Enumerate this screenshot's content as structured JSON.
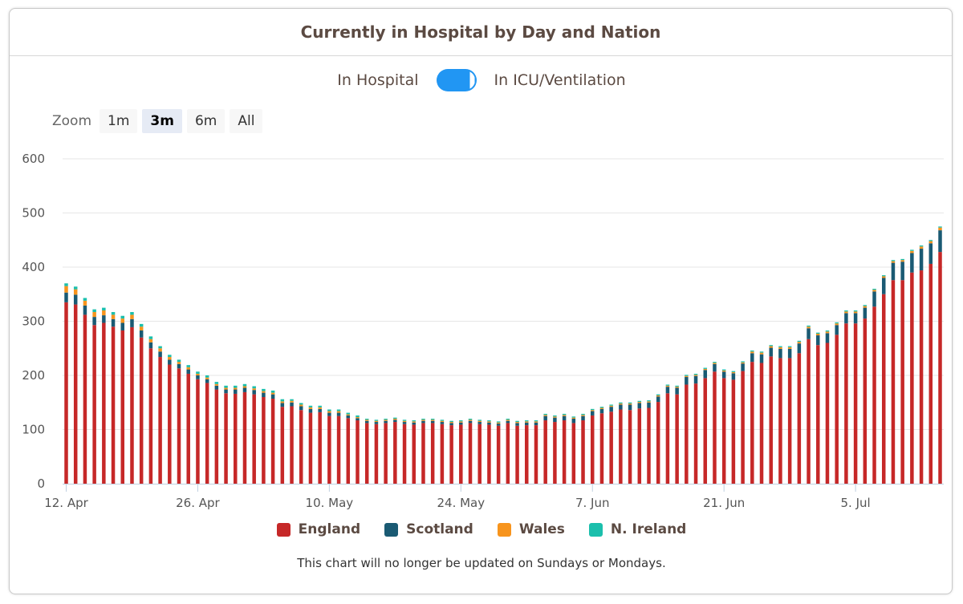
{
  "title": "Currently in Hospital by Day and Nation",
  "toggle": {
    "left_label": "In Hospital",
    "right_label": "In ICU/Ventilation",
    "state": "right"
  },
  "zoom": {
    "label": "Zoom",
    "options": [
      "1m",
      "3m",
      "6m",
      "All"
    ],
    "selected": "3m"
  },
  "note": "This chart will no longer be updated on Sundays or Mondays.",
  "chart_data": {
    "type": "bar",
    "stacked": true,
    "title": "Currently in Hospital by Day and Nation",
    "ylim": [
      0,
      600
    ],
    "yticks": [
      0,
      100,
      200,
      300,
      400,
      500,
      600
    ],
    "xtick_labels": [
      "12. Apr",
      "26. Apr",
      "10. May",
      "24. May",
      "7. Jun",
      "21. Jun",
      "5. Jul"
    ],
    "xtick_index": [
      0,
      14,
      28,
      42,
      56,
      70,
      84
    ],
    "series": [
      {
        "name": "England",
        "color": "#c62828",
        "values": [
          335,
          331,
          312,
          293,
          297,
          290,
          283,
          289,
          270,
          250,
          234,
          220,
          213,
          203,
          193,
          186,
          174,
          167,
          166,
          169,
          165,
          160,
          157,
          142,
          143,
          136,
          131,
          132,
          125,
          125,
          121,
          117,
          112,
          110,
          112,
          114,
          110,
          109,
          112,
          112,
          110,
          108,
          109,
          112,
          110,
          109,
          107,
          112,
          107,
          108,
          108,
          117,
          114,
          117,
          112,
          117,
          126,
          130,
          133,
          137,
          136,
          139,
          140,
          151,
          167,
          165,
          183,
          185,
          195,
          207,
          195,
          192,
          208,
          225,
          223,
          235,
          232,
          232,
          241,
          267,
          256,
          260,
          275,
          296,
          296,
          305,
          327,
          350,
          376,
          376,
          390,
          394,
          406,
          428
        ]
      },
      {
        "name": "Scotland",
        "color": "#1a5a73",
        "values": [
          18,
          18,
          17,
          15,
          14,
          14,
          14,
          15,
          13,
          11,
          10,
          9,
          8,
          8,
          7,
          7,
          7,
          7,
          8,
          8,
          8,
          8,
          8,
          7,
          7,
          7,
          7,
          6,
          6,
          6,
          5,
          4,
          4,
          4,
          4,
          4,
          4,
          4,
          4,
          4,
          4,
          4,
          4,
          4,
          4,
          4,
          4,
          4,
          5,
          5,
          5,
          8,
          8,
          8,
          8,
          8,
          8,
          8,
          9,
          9,
          10,
          10,
          10,
          10,
          12,
          12,
          14,
          14,
          15,
          14,
          12,
          12,
          14,
          16,
          16,
          16,
          17,
          17,
          18,
          20,
          18,
          18,
          18,
          19,
          19,
          20,
          28,
          30,
          32,
          34,
          36,
          40,
          38,
          40
        ]
      },
      {
        "name": "Wales",
        "color": "#f7941d",
        "values": [
          12,
          10,
          9,
          9,
          9,
          8,
          8,
          8,
          7,
          6,
          6,
          5,
          4,
          4,
          3,
          3,
          3,
          3,
          3,
          3,
          3,
          3,
          3,
          3,
          3,
          3,
          3,
          3,
          3,
          3,
          2,
          2,
          2,
          2,
          2,
          2,
          2,
          2,
          2,
          2,
          2,
          2,
          2,
          2,
          2,
          2,
          2,
          2,
          2,
          2,
          2,
          2,
          2,
          2,
          2,
          2,
          2,
          2,
          2,
          2,
          2,
          2,
          2,
          2,
          2,
          2,
          2,
          2,
          2,
          2,
          2,
          2,
          2,
          3,
          3,
          3,
          3,
          3,
          3,
          3,
          3,
          3,
          3,
          3,
          3,
          3,
          3,
          3,
          3,
          3,
          4,
          4,
          4,
          5
        ]
      },
      {
        "name": "N. Ireland",
        "color": "#1bbfac",
        "values": [
          5,
          5,
          5,
          5,
          5,
          5,
          5,
          5,
          5,
          5,
          4,
          4,
          4,
          4,
          4,
          4,
          4,
          4,
          4,
          4,
          4,
          4,
          4,
          4,
          3,
          3,
          3,
          3,
          3,
          3,
          3,
          3,
          2,
          2,
          2,
          2,
          2,
          2,
          2,
          2,
          2,
          2,
          2,
          2,
          2,
          2,
          2,
          2,
          2,
          2,
          2,
          2,
          2,
          2,
          2,
          2,
          2,
          2,
          2,
          2,
          2,
          2,
          2,
          2,
          2,
          2,
          2,
          2,
          2,
          2,
          2,
          2,
          2,
          2,
          2,
          2,
          2,
          2,
          2,
          2,
          2,
          2,
          2,
          2,
          2,
          2,
          2,
          2,
          2,
          2,
          2,
          2,
          2,
          2
        ]
      }
    ],
    "legend_position": "bottom"
  }
}
